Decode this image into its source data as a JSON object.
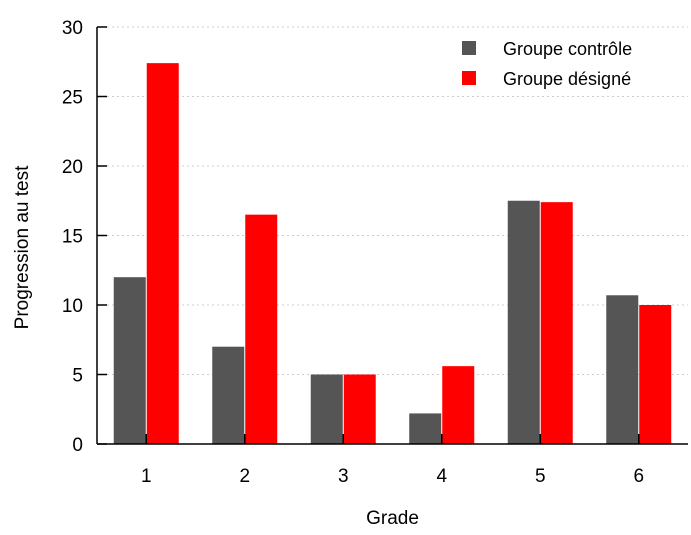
{
  "chart_data": {
    "type": "bar",
    "title": "",
    "xlabel": "Grade",
    "ylabel": "Progression au test",
    "categories": [
      "1",
      "2",
      "3",
      "4",
      "5",
      "6"
    ],
    "ylim": [
      0,
      30
    ],
    "yticks": [
      0,
      5,
      10,
      15,
      20,
      25,
      30
    ],
    "grid": "horizontal dotted",
    "legend_position": "top-right",
    "series": [
      {
        "name": "Groupe contrôle",
        "color": "#555555",
        "values": [
          12.0,
          7.0,
          5.0,
          2.2,
          17.5,
          10.7
        ]
      },
      {
        "name": "Groupe désigné",
        "color": "#ff0000",
        "values": [
          27.4,
          16.5,
          5.0,
          5.6,
          17.4,
          10.0
        ]
      }
    ]
  }
}
